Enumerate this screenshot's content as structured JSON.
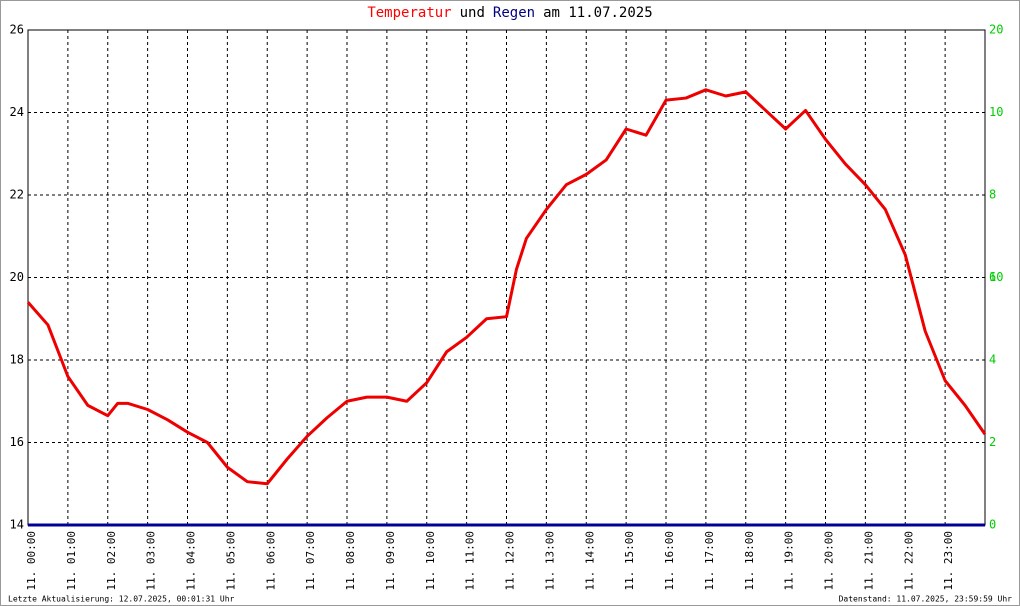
{
  "chart_data": {
    "type": "line",
    "title_parts": [
      "Temperatur",
      "und",
      "Regen",
      "am 11.07.2025"
    ],
    "title_colors": [
      "#ff0000",
      "#000000",
      "#000080",
      "#000000"
    ],
    "x": [
      0,
      0.5,
      1,
      1.5,
      2,
      2.25,
      2.5,
      3,
      3.5,
      4,
      4.5,
      5,
      5.5,
      6,
      6.5,
      7,
      7.5,
      8,
      8.5,
      9,
      9.5,
      10,
      10.5,
      11,
      11.5,
      12,
      12.25,
      12.5,
      13,
      13.5,
      14,
      14.5,
      15,
      15.5,
      16,
      16.5,
      17,
      17.5,
      18,
      18.5,
      19,
      19.5,
      20,
      20.5,
      21,
      21.5,
      22,
      22.5,
      23,
      23.5,
      24
    ],
    "series": [
      {
        "name": "Temperatur",
        "color": "#ee0000",
        "values": [
          19.4,
          18.85,
          17.6,
          16.9,
          16.65,
          16.95,
          16.95,
          16.8,
          16.55,
          16.25,
          16.0,
          15.4,
          15.05,
          15.0,
          15.6,
          16.15,
          16.6,
          17.0,
          17.1,
          17.1,
          17.0,
          17.45,
          18.2,
          18.55,
          19.0,
          19.05,
          20.2,
          20.95,
          21.65,
          22.25,
          22.5,
          22.85,
          23.6,
          23.45,
          24.3,
          24.35,
          24.55,
          24.4,
          24.5,
          24.05,
          23.6,
          24.05,
          23.35,
          22.75,
          22.25,
          21.65,
          20.55,
          18.7,
          17.5,
          16.9,
          16.2
        ]
      },
      {
        "name": "Regen",
        "color": "#000099",
        "axis": "y2",
        "values": [
          0,
          0,
          0,
          0,
          0,
          0,
          0,
          0,
          0,
          0,
          0,
          0,
          0,
          0,
          0,
          0,
          0,
          0,
          0,
          0,
          0,
          0,
          0,
          0,
          0,
          0,
          0,
          0,
          0,
          0,
          0,
          0,
          0,
          0,
          0,
          0,
          0,
          0,
          0,
          0,
          0,
          0,
          0,
          0,
          0,
          0,
          0,
          0,
          0,
          0,
          0
        ]
      }
    ],
    "xlim": [
      0,
      24
    ],
    "xticks": [
      {
        "value": 0,
        "label": "11. 00:00"
      },
      {
        "value": 1,
        "label": "11. 01:00"
      },
      {
        "value": 2,
        "label": "11. 02:00"
      },
      {
        "value": 3,
        "label": "11. 03:00"
      },
      {
        "value": 4,
        "label": "11. 04:00"
      },
      {
        "value": 5,
        "label": "11. 05:00"
      },
      {
        "value": 6,
        "label": "11. 06:00"
      },
      {
        "value": 7,
        "label": "11. 07:00"
      },
      {
        "value": 8,
        "label": "11. 08:00"
      },
      {
        "value": 9,
        "label": "11. 09:00"
      },
      {
        "value": 10,
        "label": "11. 10:00"
      },
      {
        "value": 11,
        "label": "11. 11:00"
      },
      {
        "value": 12,
        "label": "11. 12:00"
      },
      {
        "value": 13,
        "label": "11. 13:00"
      },
      {
        "value": 14,
        "label": "11. 14:00"
      },
      {
        "value": 15,
        "label": "11. 15:00"
      },
      {
        "value": 16,
        "label": "11. 16:00"
      },
      {
        "value": 17,
        "label": "11. 17:00"
      },
      {
        "value": 18,
        "label": "11. 18:00"
      },
      {
        "value": 19,
        "label": "11. 19:00"
      },
      {
        "value": 20,
        "label": "11. 20:00"
      },
      {
        "value": 21,
        "label": "11. 21:00"
      },
      {
        "value": 22,
        "label": "11. 22:00"
      },
      {
        "value": 23,
        "label": "11. 23:00"
      }
    ],
    "ylim": [
      14,
      26
    ],
    "yticks": [
      14,
      16,
      18,
      20,
      22,
      24,
      26
    ],
    "y2lim": [
      0,
      12
    ],
    "y2ticks": [
      0,
      2,
      4,
      6,
      8,
      10
    ],
    "y3lim": [
      0,
      20
    ],
    "y3ticks": [
      10,
      20
    ],
    "y2color": "#00cc00",
    "grid": true,
    "footer_left": "Letzte Aktualisierung: 12.07.2025, 00:01:31 Uhr",
    "footer_right": "Datenstand: 11.07.2025, 23:59:59 Uhr"
  }
}
